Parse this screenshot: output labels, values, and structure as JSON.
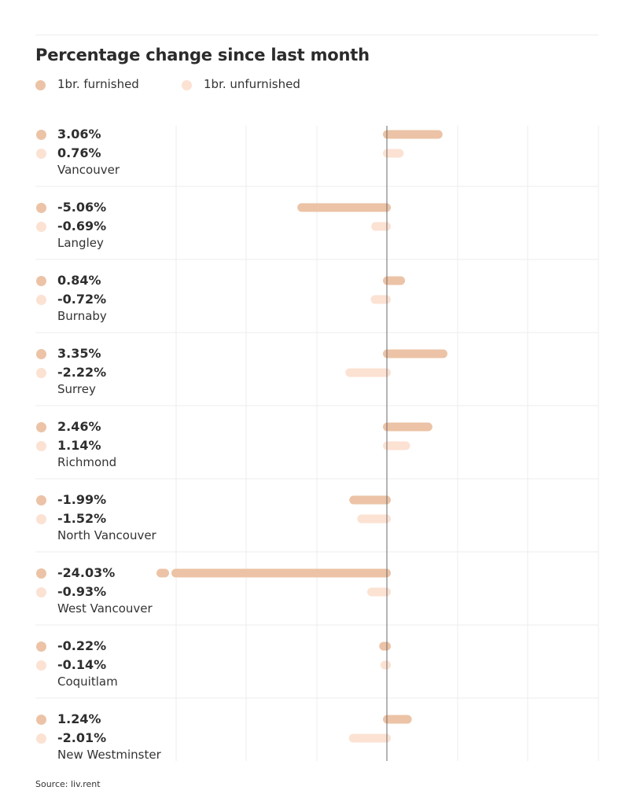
{
  "colors": {
    "furnished": "#ecc3a6",
    "unfurnished": "#fce2d3",
    "gridline": "#ececec",
    "zero_line": "#6a6a6a",
    "row_divider": "#ededed"
  },
  "source": "Source: liv.rent",
  "chart_data": {
    "type": "bar",
    "orientation": "horizontal",
    "title": "Percentage change since last month",
    "xlabel": "",
    "ylabel": "",
    "grid": true,
    "legend_position": "top-left",
    "categories": [
      "Vancouver",
      "Langley",
      "Burnaby",
      "Surrey",
      "Richmond",
      "North Vancouver",
      "West Vancouver",
      "Coquitlam",
      "New Westminster"
    ],
    "series": [
      {
        "name": "1br. furnished",
        "values": [
          3.06,
          -5.06,
          0.84,
          3.35,
          2.46,
          -1.99,
          -24.03,
          -0.22,
          1.24
        ],
        "labels": [
          "3.06%",
          "-5.06%",
          "0.84%",
          "3.35%",
          "2.46%",
          "-1.99%",
          "-24.03%",
          "-0.22%",
          "1.24%"
        ]
      },
      {
        "name": "1br. unfurnished",
        "values": [
          0.76,
          -0.69,
          -0.72,
          -2.22,
          1.14,
          -1.52,
          -0.93,
          -0.14,
          -2.01
        ],
        "labels": [
          "0.76%",
          "-0.69%",
          "-0.72%",
          "-2.22%",
          "1.14%",
          "-1.52%",
          "-0.93%",
          "-0.14%",
          "-2.01%"
        ]
      }
    ]
  }
}
